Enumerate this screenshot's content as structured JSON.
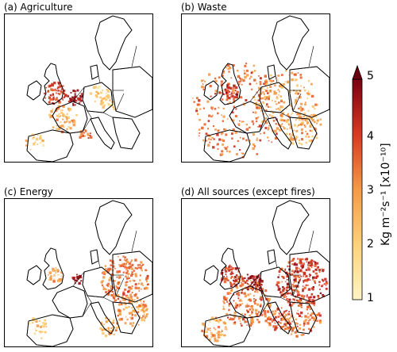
{
  "panels": [
    {
      "id": "a",
      "title": "(a) Agriculture"
    },
    {
      "id": "b",
      "title": "(b) Waste"
    },
    {
      "id": "c",
      "title": "(c) Energy"
    },
    {
      "id": "d",
      "title": "(d) All sources (except fires)"
    }
  ],
  "colorbar": {
    "ticks": [
      "1",
      "2",
      "3",
      "4",
      "5"
    ],
    "unit_label": "Kg m⁻²s⁻¹ [x10⁻¹⁰]",
    "colors": {
      "low": "#fff5c4",
      "mid": "#f59a45",
      "high": "#7a0010"
    }
  }
}
